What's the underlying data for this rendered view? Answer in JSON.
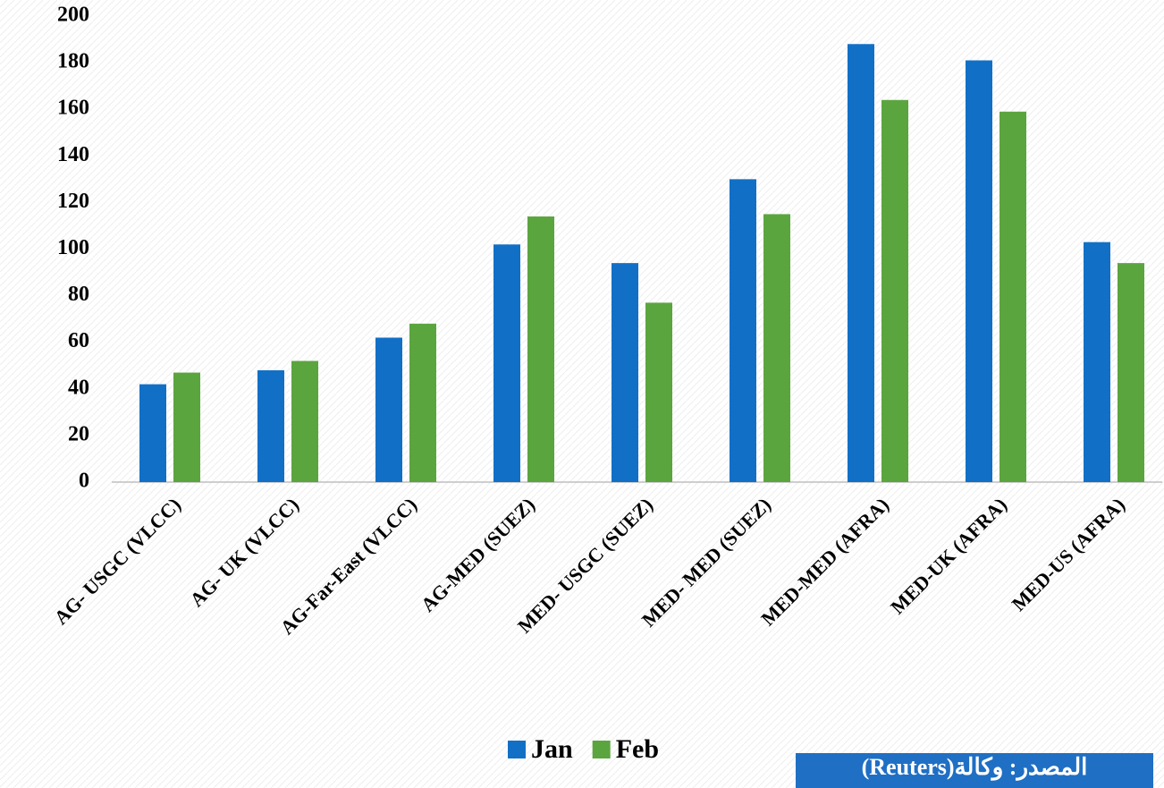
{
  "chart_data": {
    "type": "bar",
    "categories": [
      "AG- USGC (VLCC)",
      "AG- UK (VLCC)",
      "AG-Far-East (VLCC)",
      "AG-MED (SUEZ)",
      "MED- USGC (SUEZ)",
      "MED- MED (SUEZ)",
      "MED-MED (AFRA)",
      "MED-UK (AFRA)",
      "MED-US (AFRA)"
    ],
    "series": [
      {
        "name": "Jan",
        "color": "#1170c6",
        "values": [
          42,
          48,
          62,
          102,
          94,
          130,
          188,
          181,
          103
        ]
      },
      {
        "name": "Feb",
        "color": "#5ba53e",
        "values": [
          47,
          52,
          68,
          114,
          77,
          115,
          164,
          159,
          94
        ]
      }
    ],
    "ylim": [
      0,
      200
    ],
    "yticks": [
      0,
      20,
      40,
      60,
      80,
      100,
      120,
      140,
      160,
      180,
      200
    ],
    "grid": false,
    "legend": "bottom",
    "source": "المصدر: وكالة(Reuters)"
  }
}
